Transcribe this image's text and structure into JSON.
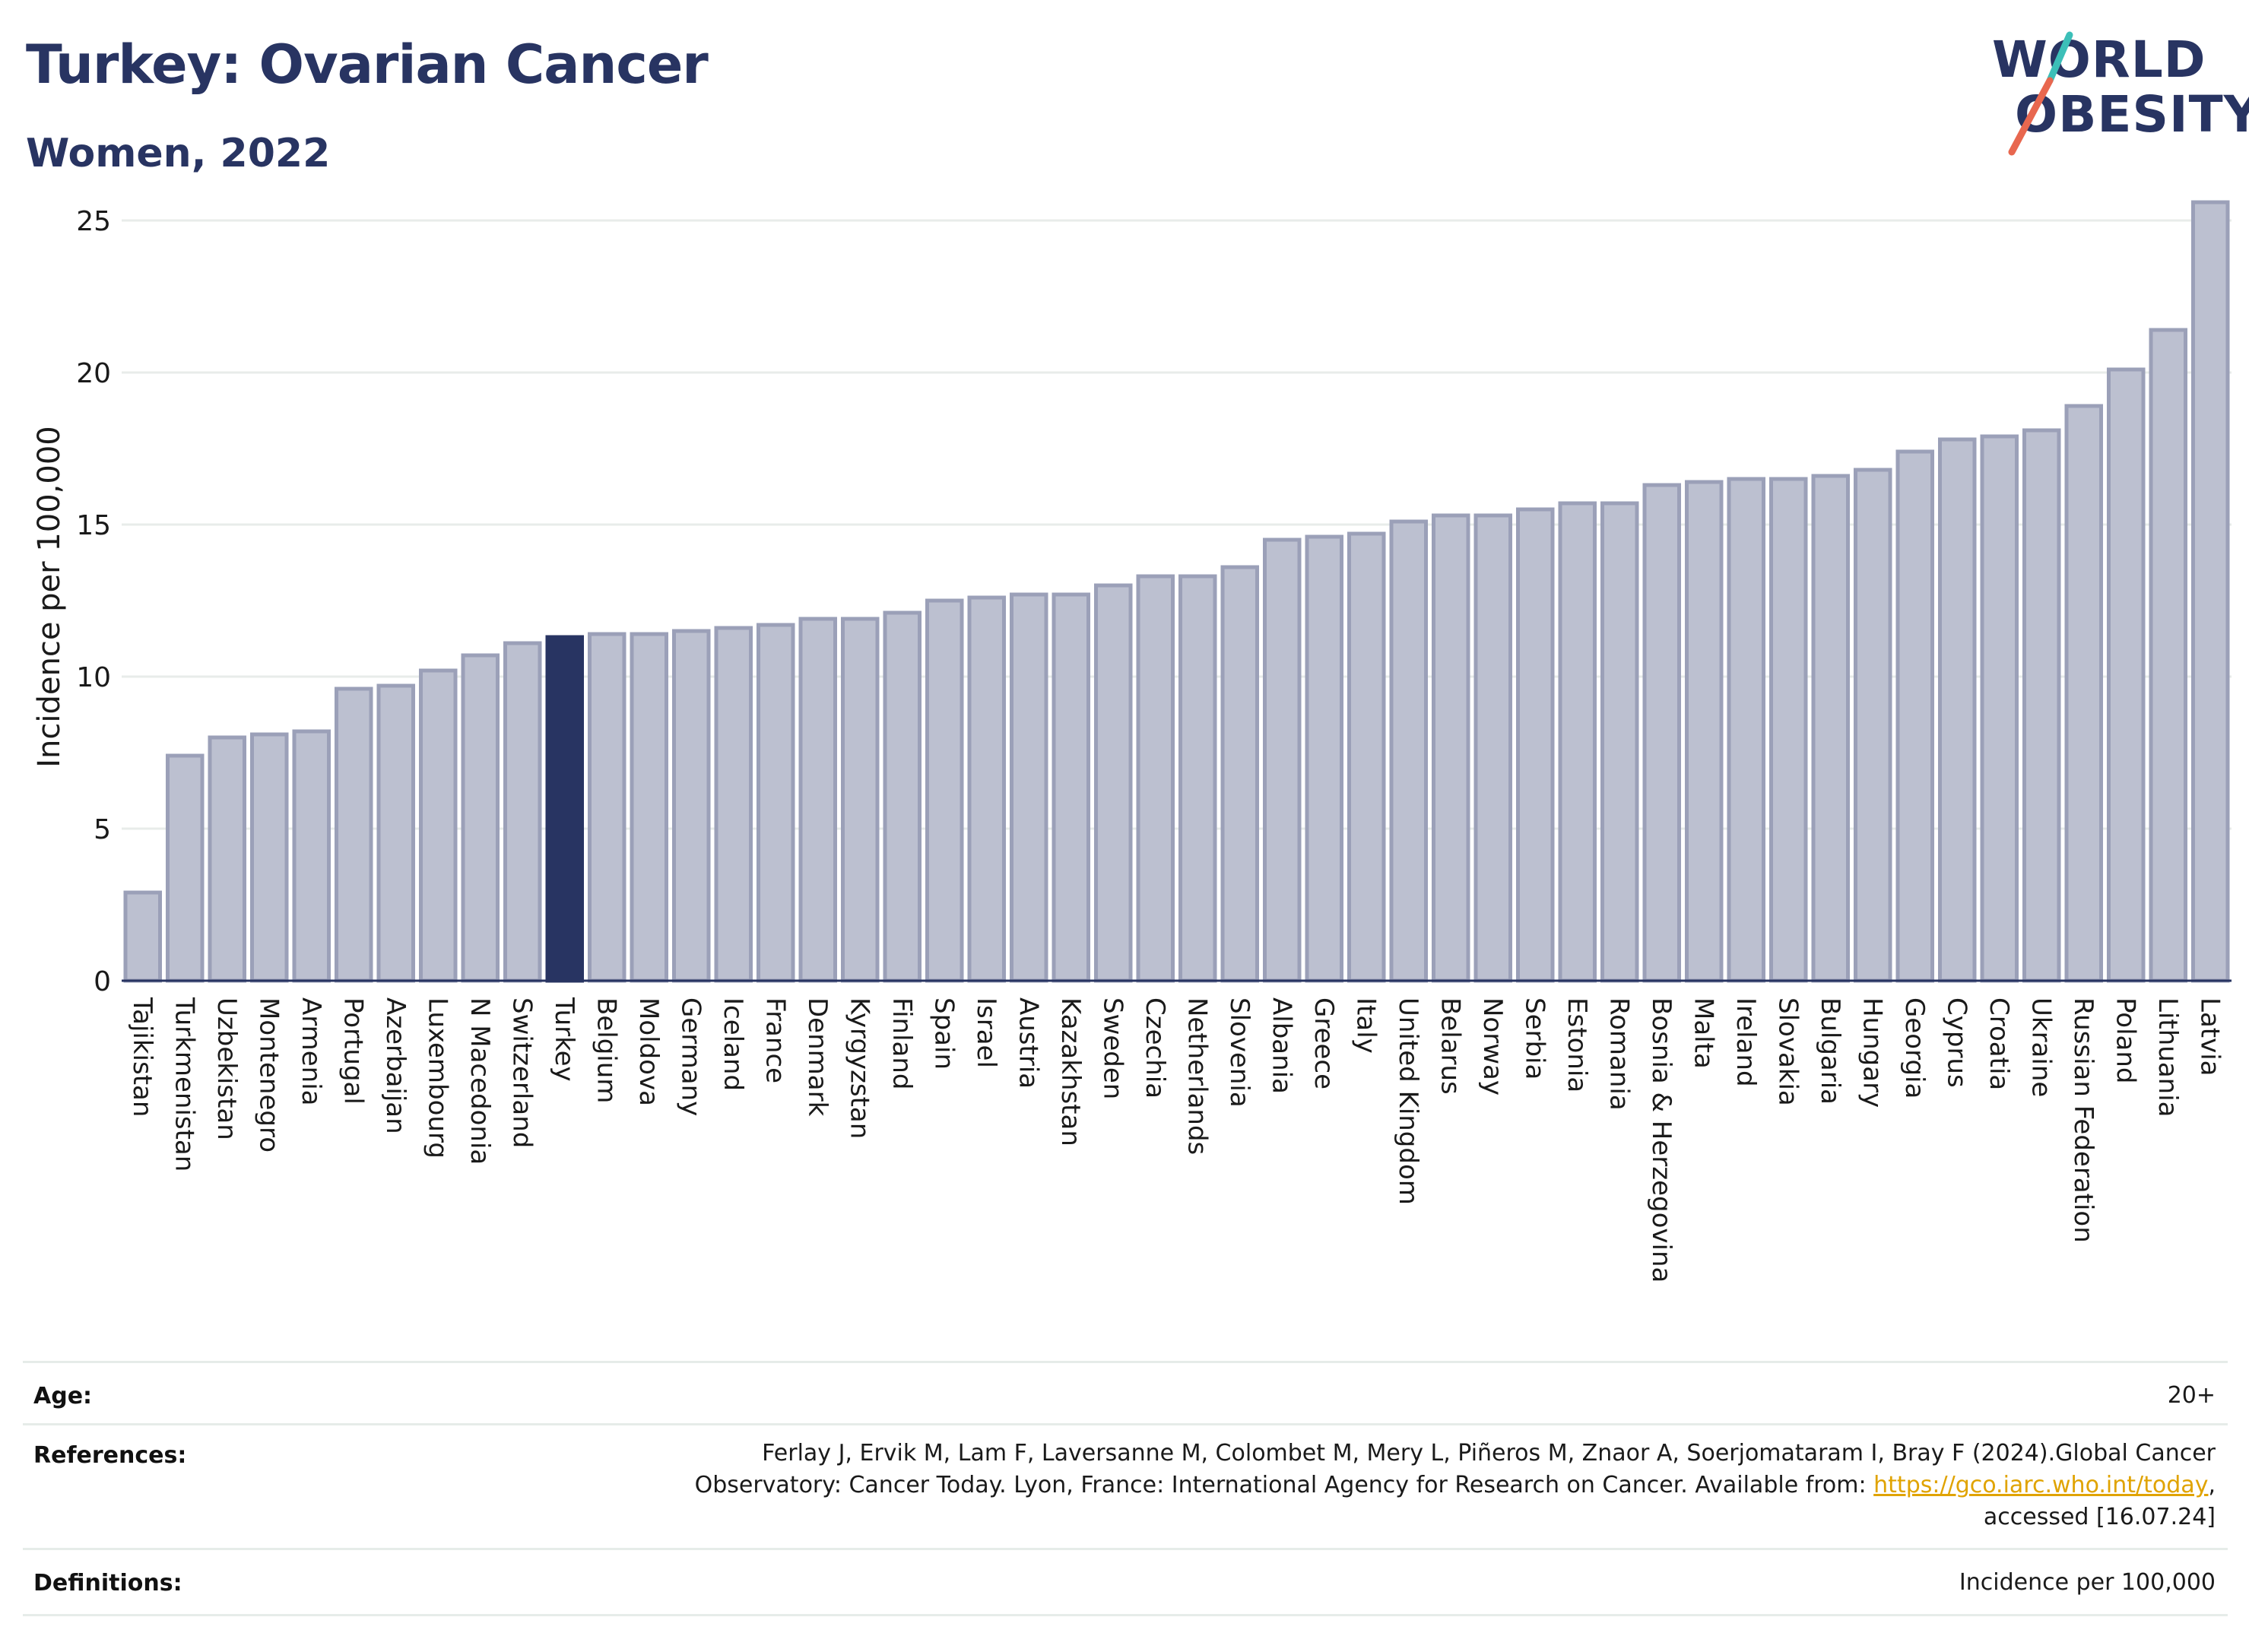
{
  "header": {
    "title": "Turkey: Ovarian Cancer",
    "subtitle": "Women, 2022"
  },
  "logo": {
    "line1": "WORLD",
    "line2": "OBESITY",
    "slash_colors": [
      "#3cbfb8",
      "#e8674f"
    ]
  },
  "chart_data": {
    "type": "bar",
    "title": "Turkey: Ovarian Cancer",
    "subtitle": "Women, 2022",
    "xlabel": "",
    "ylabel": "Incidence per 100,000",
    "ylim": [
      0,
      26
    ],
    "yticks": [
      0,
      5,
      10,
      15,
      20,
      25
    ],
    "grid": true,
    "highlight": "Turkey",
    "colors": {
      "bar": "#bcc0d0",
      "bar_edge": "#9ba0b8",
      "highlight": "#283462",
      "grid": "#e8ecea",
      "axis": "#283462"
    },
    "categories": [
      "Tajikistan",
      "Turkmenistan",
      "Uzbekistan",
      "Montenegro",
      "Armenia",
      "Portugal",
      "Azerbaijan",
      "Luxembourg",
      "N Macedonia",
      "Switzerland",
      "Turkey",
      "Belgium",
      "Moldova",
      "Germany",
      "Iceland",
      "France",
      "Denmark",
      "Kyrgyzstan",
      "Finland",
      "Spain",
      "Israel",
      "Austria",
      "Kazakhstan",
      "Sweden",
      "Czechia",
      "Netherlands",
      "Slovenia",
      "Albania",
      "Greece",
      "Italy",
      "United Kingdom",
      "Belarus",
      "Norway",
      "Serbia",
      "Estonia",
      "Romania",
      "Bosnia & Herzegovina",
      "Malta",
      "Ireland",
      "Slovakia",
      "Bulgaria",
      "Hungary",
      "Georgia",
      "Cyprus",
      "Croatia",
      "Ukraine",
      "Russian Federation",
      "Poland",
      "Lithuania",
      "Latvia"
    ],
    "values": [
      2.9,
      7.4,
      8.0,
      8.1,
      8.2,
      9.6,
      9.7,
      10.2,
      10.7,
      11.1,
      11.3,
      11.4,
      11.4,
      11.5,
      11.6,
      11.7,
      11.9,
      11.9,
      12.1,
      12.5,
      12.6,
      12.7,
      12.7,
      13.0,
      13.3,
      13.3,
      13.6,
      14.5,
      14.6,
      14.7,
      15.1,
      15.3,
      15.3,
      15.5,
      15.7,
      15.7,
      16.3,
      16.4,
      16.5,
      16.5,
      16.6,
      16.8,
      17.4,
      17.8,
      17.9,
      18.1,
      18.9,
      20.1,
      21.4,
      25.6
    ]
  },
  "info": {
    "age_label": "Age:",
    "age_value": "20+",
    "references_label": "References:",
    "references_line1": "Ferlay J, Ervik M, Lam F, Laversanne M, Colombet M, Mery L, Piñeros M, Znaor A, Soerjomataram I, Bray F (2024).Global Cancer",
    "references_line2_pre": "Observatory: Cancer Today. Lyon, France: International Agency for Research on Cancer. Available from: ",
    "references_link": "https://gco.iarc.who.int/today",
    "references_line2_post": ",",
    "references_line3": "accessed [16.07.24]",
    "definitions_label": "Definitions:",
    "definitions_value": "Incidence per 100,000"
  }
}
